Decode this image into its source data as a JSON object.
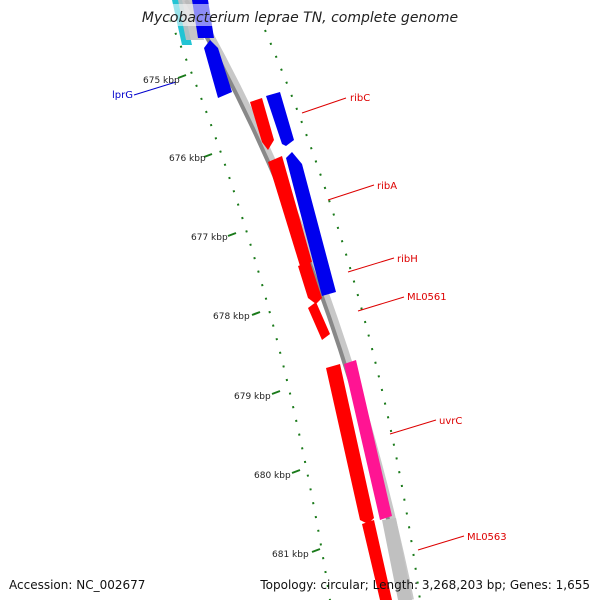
{
  "title": "Mycobacterium leprae TN, complete genome",
  "accession": "Accession: NC_002677",
  "summary": "Topology: circular; Length: 3,268,203 bp; Genes: 1,655",
  "colors": {
    "background": "#ffffff",
    "backbone": "#888888",
    "backbone_outer": "#c8c8c8",
    "tick": "#1a7a1a",
    "forward_gene": "#0000ee",
    "reverse_gene": "#ff0000",
    "magenta_gene": "#ff1493",
    "cyan_gene": "#22c4d4",
    "gray_gene": "#c0c0c0",
    "label_red": "#dd0000",
    "label_blue": "#0000cc"
  },
  "ticks": [
    {
      "label": "675 kbp"
    },
    {
      "label": "676 kbp"
    },
    {
      "label": "677 kbp"
    },
    {
      "label": "678 kbp"
    },
    {
      "label": "679 kbp"
    },
    {
      "label": "680 kbp"
    },
    {
      "label": "681 kbp"
    }
  ],
  "genes": [
    {
      "label": "lprG",
      "label_color": "blue"
    },
    {
      "label": "ribC",
      "label_color": "red"
    },
    {
      "label": "ribA",
      "label_color": "red"
    },
    {
      "label": "ribH",
      "label_color": "red"
    },
    {
      "label": "ML0561",
      "label_color": "red"
    },
    {
      "label": "uvrC",
      "label_color": "red"
    },
    {
      "label": "ML0563",
      "label_color": "red"
    }
  ]
}
